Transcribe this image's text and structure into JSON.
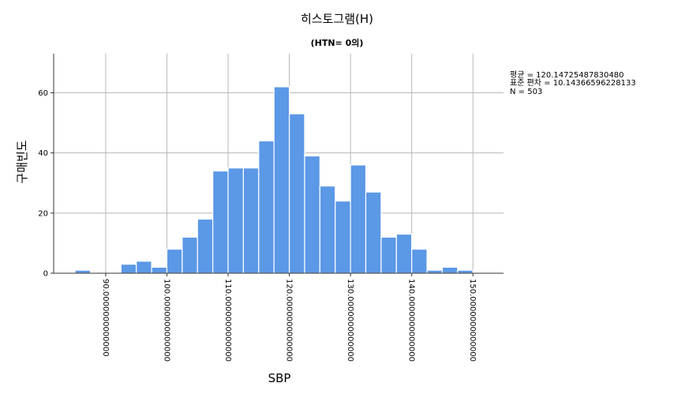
{
  "chart_data": {
    "type": "bar",
    "title": "히스토그램(H)",
    "subtitle": "(HTN= 0의)",
    "xlabel": "SBP",
    "ylabel": "구매빈도",
    "xlim": [
      81.5,
      155
    ],
    "ylim": [
      0,
      73
    ],
    "bin_width": 2.5,
    "bins": [
      {
        "start": 85.0,
        "count": 1
      },
      {
        "start": 87.5,
        "count": 0
      },
      {
        "start": 90.0,
        "count": 0
      },
      {
        "start": 92.5,
        "count": 3
      },
      {
        "start": 95.0,
        "count": 4
      },
      {
        "start": 97.5,
        "count": 2
      },
      {
        "start": 100.0,
        "count": 8
      },
      {
        "start": 102.5,
        "count": 12
      },
      {
        "start": 105.0,
        "count": 18
      },
      {
        "start": 107.5,
        "count": 34
      },
      {
        "start": 110.0,
        "count": 35
      },
      {
        "start": 112.5,
        "count": 35
      },
      {
        "start": 115.0,
        "count": 44
      },
      {
        "start": 117.5,
        "count": 62
      },
      {
        "start": 120.0,
        "count": 53
      },
      {
        "start": 122.5,
        "count": 39
      },
      {
        "start": 125.0,
        "count": 29
      },
      {
        "start": 127.5,
        "count": 24
      },
      {
        "start": 130.0,
        "count": 36
      },
      {
        "start": 132.5,
        "count": 27
      },
      {
        "start": 135.0,
        "count": 12
      },
      {
        "start": 137.5,
        "count": 13
      },
      {
        "start": 140.0,
        "count": 8
      },
      {
        "start": 142.5,
        "count": 1
      },
      {
        "start": 145.0,
        "count": 2
      },
      {
        "start": 147.5,
        "count": 1
      }
    ],
    "y_ticks": [
      0,
      20,
      40,
      60
    ],
    "x_ticks": [
      {
        "value": 90,
        "label": "90.0000000000000"
      },
      {
        "value": 100,
        "label": "100.0000000000000"
      },
      {
        "value": 110,
        "label": "110.0000000000000"
      },
      {
        "value": 120,
        "label": "120.0000000000000"
      },
      {
        "value": 130,
        "label": "130.0000000000000"
      },
      {
        "value": 140,
        "label": "140.0000000000000"
      },
      {
        "value": 150,
        "label": "150.0000000000000"
      }
    ],
    "grid": true,
    "bar_color": "#5b98e6",
    "legend_position": "top-right",
    "stats": {
      "mean": "평균 = 120.14725487830480",
      "std": "표준 편차 = 10.14366596228133",
      "n": "N = 503"
    }
  }
}
